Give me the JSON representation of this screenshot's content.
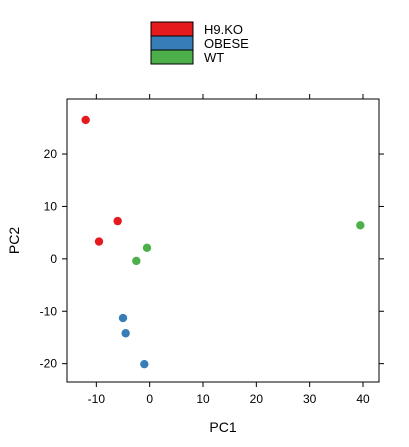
{
  "chart_data": {
    "type": "scatter",
    "xlabel": "PC1",
    "ylabel": "PC2",
    "xlim": [
      -15.5,
      43
    ],
    "ylim": [
      -23.5,
      30.5
    ],
    "x_ticks": [
      -10,
      0,
      10,
      20,
      30,
      40
    ],
    "y_ticks": [
      -20,
      -10,
      0,
      10,
      20
    ],
    "legend_placement": "top-center",
    "series": [
      {
        "name": "H9.KO",
        "color": "#e41a1c",
        "points": [
          [
            -12,
            26.5
          ],
          [
            -6,
            7.2
          ],
          [
            -9.5,
            3.3
          ]
        ]
      },
      {
        "name": "OBESE",
        "color": "#377eb8",
        "points": [
          [
            -5,
            -11.3
          ],
          [
            -4.5,
            -14.2
          ],
          [
            -1,
            -20.1
          ]
        ]
      },
      {
        "name": "WT",
        "color": "#4daf4a",
        "points": [
          [
            -0.5,
            2.1
          ],
          [
            -2.5,
            -0.4
          ],
          [
            39.5,
            6.4
          ]
        ]
      }
    ]
  }
}
